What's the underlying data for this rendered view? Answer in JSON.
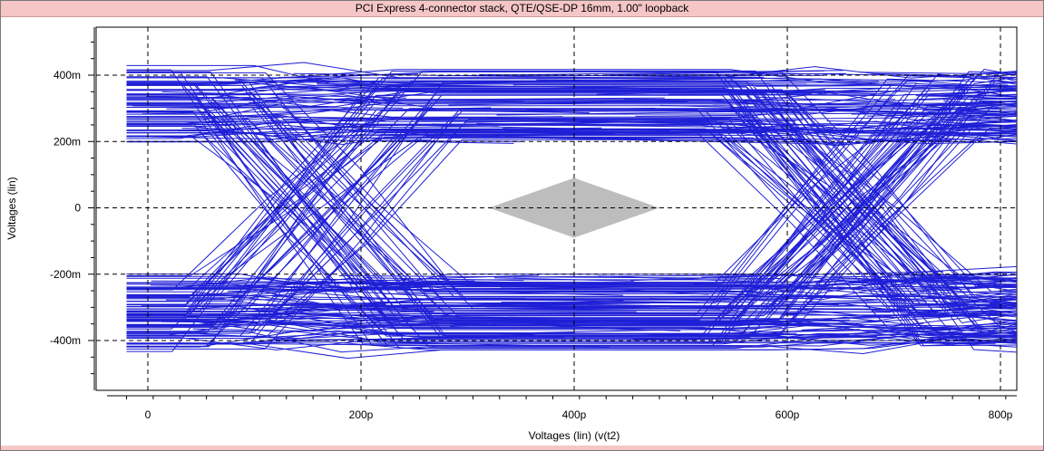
{
  "chart_data": {
    "type": "line",
    "title": "PCI Express 4-connector stack, QTE/QSE-DP 16mm, 1.00\" loopback",
    "xlabel": "Voltages (lin) (v(t2)",
    "ylabel": "Voltages (lin)",
    "xlim": [
      -20,
      820
    ],
    "ylim": [
      -520,
      520
    ],
    "x_unit": "ps",
    "y_unit": "mV",
    "x_ticks": [
      0,
      200,
      400,
      600,
      800
    ],
    "x_tick_labels": [
      "0",
      "200p",
      "400p",
      "600p",
      "800p"
    ],
    "y_ticks": [
      400,
      200,
      0,
      -200,
      -400
    ],
    "y_tick_labels": [
      "400m",
      "200m",
      "0",
      "-200m",
      "-400m"
    ],
    "grid": true,
    "trace_color": "#1f1fd6",
    "mask_color": "#bdbdbd",
    "mask_polygon": [
      [
        320,
        0
      ],
      [
        400,
        90
      ],
      [
        480,
        0
      ],
      [
        400,
        -90
      ]
    ],
    "eye_crossings": [
      160,
      655
    ],
    "high_level_band": [
      200,
      410
    ],
    "low_level_band": [
      -410,
      -200
    ]
  }
}
